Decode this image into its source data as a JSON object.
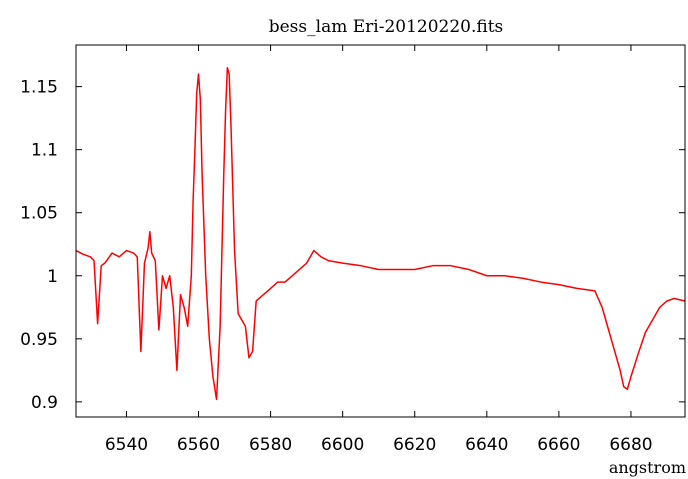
{
  "chart_data": {
    "type": "line",
    "title": "bess_lam Eri-20120220.fits",
    "xlabel": "angstrom",
    "ylabel": "",
    "xlim": [
      6526,
      6695
    ],
    "ylim": [
      0.888,
      1.183
    ],
    "xticks": [
      6540,
      6560,
      6580,
      6600,
      6620,
      6640,
      6660,
      6680
    ],
    "yticks": [
      0.9,
      0.95,
      1,
      1.05,
      1.1,
      1.15
    ],
    "ytick_labels": [
      "0.9",
      "0.95",
      "1",
      "1.05",
      "1.1",
      "1.15"
    ],
    "grid": false,
    "legend": "none",
    "series_color": "#ff0000",
    "series": [
      {
        "x": [
          6526,
          6528,
          6530,
          6531,
          6532,
          6533,
          6534,
          6536,
          6538,
          6540,
          6542,
          6543,
          6544,
          6545,
          6546,
          6546.5,
          6547,
          6548,
          6549,
          6550,
          6551,
          6552,
          6553,
          6554,
          6555,
          6556,
          6557,
          6558,
          6558.5,
          6559,
          6559.5,
          6560,
          6560.5,
          6561,
          6562,
          6563,
          6564,
          6565,
          6566,
          6566.5,
          6567,
          6567.5,
          6568,
          6568.5,
          6569,
          6569.5,
          6570,
          6571,
          6572,
          6573,
          6574,
          6575,
          6576,
          6578,
          6580,
          6582,
          6584,
          6586,
          6588,
          6590,
          6592,
          6594,
          6596,
          6600,
          6605,
          6610,
          6615,
          6620,
          6625,
          6630,
          6635,
          6640,
          6645,
          6650,
          6655,
          6660,
          6665,
          6670,
          6672,
          6674,
          6676,
          6677,
          6678,
          6679,
          6680,
          6682,
          6684,
          6686,
          6688,
          6690,
          6692,
          6695
        ],
        "y": [
          1.02,
          1.017,
          1.015,
          1.012,
          0.962,
          1.008,
          1.01,
          1.018,
          1.015,
          1.02,
          1.018,
          1.015,
          0.94,
          1.01,
          1.022,
          1.035,
          1.018,
          1.012,
          0.957,
          1.0,
          0.99,
          1.0,
          0.975,
          0.925,
          0.985,
          0.975,
          0.96,
          1.0,
          1.06,
          1.1,
          1.145,
          1.16,
          1.14,
          1.08,
          1.0,
          0.95,
          0.92,
          0.902,
          0.96,
          1.02,
          1.08,
          1.13,
          1.165,
          1.16,
          1.12,
          1.07,
          1.02,
          0.97,
          0.965,
          0.96,
          0.935,
          0.94,
          0.98,
          0.985,
          0.99,
          0.995,
          0.995,
          1.0,
          1.005,
          1.01,
          1.02,
          1.015,
          1.012,
          1.01,
          1.008,
          1.005,
          1.005,
          1.005,
          1.008,
          1.008,
          1.005,
          1.0,
          1.0,
          0.998,
          0.995,
          0.993,
          0.99,
          0.988,
          0.975,
          0.955,
          0.935,
          0.925,
          0.912,
          0.91,
          0.92,
          0.938,
          0.955,
          0.965,
          0.975,
          0.98,
          0.982,
          0.98
        ]
      }
    ]
  }
}
